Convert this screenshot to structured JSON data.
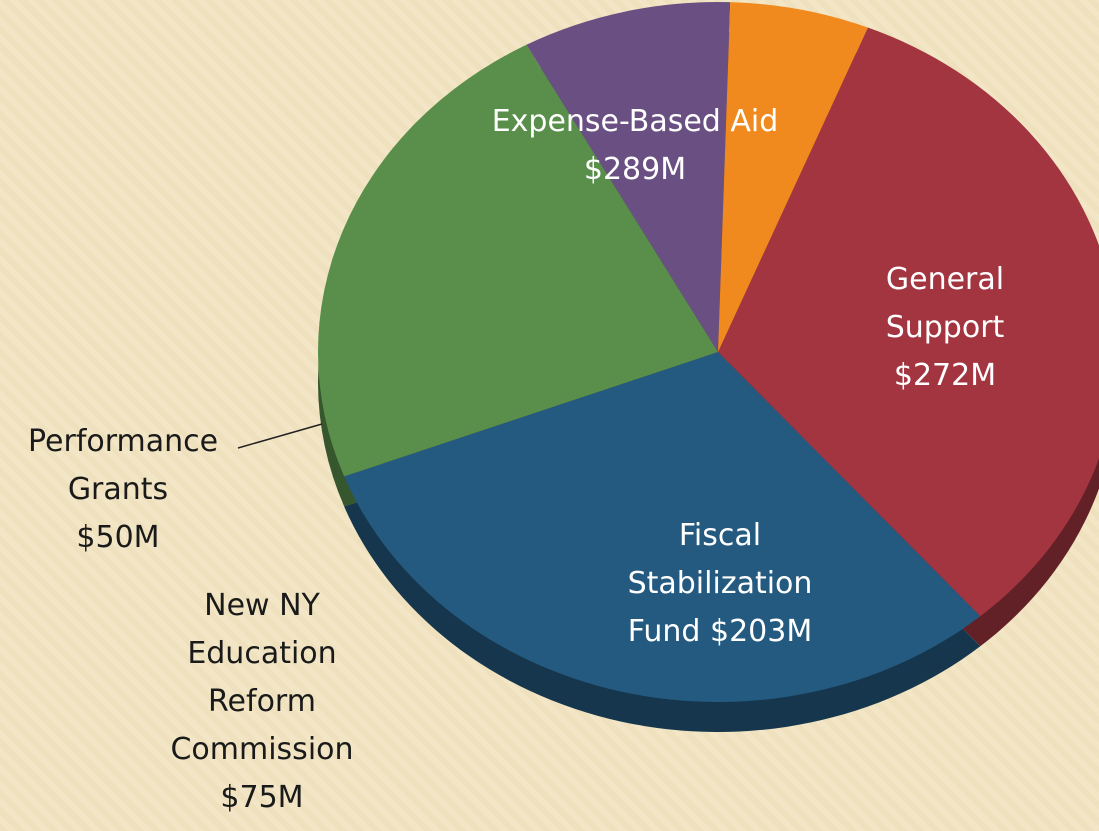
{
  "chart_data": {
    "type": "pie",
    "categories": [
      "Expense-Based Aid",
      "General Support",
      "Fiscal Stabilization Fund",
      "New NY Education Reform Commission",
      "Performance Grants"
    ],
    "values": [
      289,
      272,
      203,
      75,
      50
    ],
    "value_labels": [
      "$289M",
      "$272M",
      "$203M",
      "$75M",
      "$50M"
    ],
    "colors": [
      "#a33541",
      "#245a80",
      "#5a8f4b",
      "#6a5082",
      "#f08a1e"
    ]
  }
}
